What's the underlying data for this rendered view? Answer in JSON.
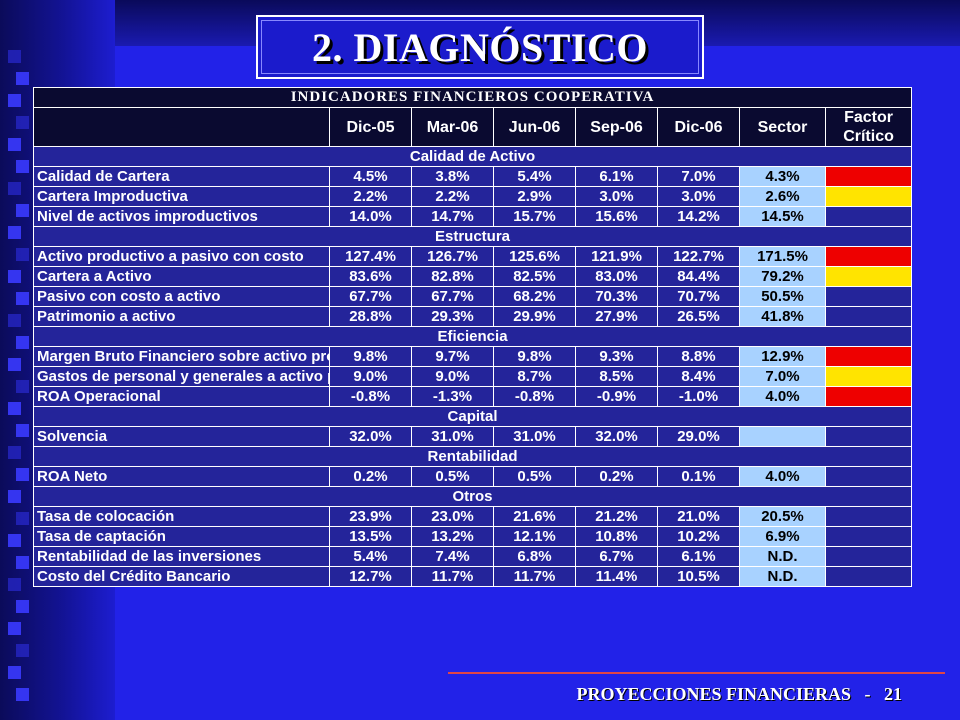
{
  "slide_title": "2. DIAGNÓSTICO",
  "table_title": "INDICADORES FINANCIEROS COOPERATIVA",
  "columns": [
    "Dic-05",
    "Mar-06",
    "Jun-06",
    "Sep-06",
    "Dic-06",
    "Sector"
  ],
  "factor_header": [
    "Factor",
    "Crítico"
  ],
  "sections": [
    {
      "name": "Calidad de Activo",
      "rows": [
        {
          "label": "Calidad de Cartera",
          "values": [
            "4.5%",
            "3.8%",
            "5.4%",
            "6.1%",
            "7.0%",
            "4.3%"
          ],
          "factor": "red"
        },
        {
          "label": "Cartera Improductiva",
          "values": [
            "2.2%",
            "2.2%",
            "2.9%",
            "3.0%",
            "3.0%",
            "2.6%"
          ],
          "factor": "yellow"
        },
        {
          "label": "Nivel de activos improductivos",
          "values": [
            "14.0%",
            "14.7%",
            "15.7%",
            "15.6%",
            "14.2%",
            "14.5%"
          ],
          "factor": "none"
        }
      ]
    },
    {
      "name": "Estructura",
      "rows": [
        {
          "label": "Activo productivo a pasivo con costo",
          "values": [
            "127.4%",
            "126.7%",
            "125.6%",
            "121.9%",
            "122.7%",
            "171.5%"
          ],
          "factor": "red"
        },
        {
          "label": "Cartera a Activo",
          "values": [
            "83.6%",
            "82.8%",
            "82.5%",
            "83.0%",
            "84.4%",
            "79.2%"
          ],
          "factor": "yellow"
        },
        {
          "label": "Pasivo con costo a activo",
          "values": [
            "67.7%",
            "67.7%",
            "68.2%",
            "70.3%",
            "70.7%",
            "50.5%"
          ],
          "factor": "none"
        },
        {
          "label": "Patrimonio a activo",
          "values": [
            "28.8%",
            "29.3%",
            "29.9%",
            "27.9%",
            "26.5%",
            "41.8%"
          ],
          "factor": "none"
        }
      ]
    },
    {
      "name": "Eficiencia",
      "rows": [
        {
          "label": "Margen Bruto Financiero sobre activo promedio",
          "values": [
            "9.8%",
            "9.7%",
            "9.8%",
            "9.3%",
            "8.8%",
            "12.9%"
          ],
          "factor": "red",
          "tall": true
        },
        {
          "label": "Gastos de personal y generales a activo promedio",
          "values": [
            "9.0%",
            "9.0%",
            "8.7%",
            "8.5%",
            "8.4%",
            "7.0%"
          ],
          "factor": "yellow",
          "tall": true
        },
        {
          "label": "ROA Operacional",
          "values": [
            "-0.8%",
            "-1.3%",
            "-0.8%",
            "-0.9%",
            "-1.0%",
            "4.0%"
          ],
          "factor": "red"
        }
      ]
    },
    {
      "name": "Capital",
      "rows": [
        {
          "label": "Solvencia",
          "values": [
            "32.0%",
            "31.0%",
            "31.0%",
            "32.0%",
            "29.0%",
            ""
          ],
          "factor": "none"
        }
      ]
    },
    {
      "name": "Rentabilidad",
      "rows": [
        {
          "label": "ROA Neto",
          "values": [
            "0.2%",
            "0.5%",
            "0.5%",
            "0.2%",
            "0.1%",
            "4.0%"
          ],
          "factor": "none"
        }
      ]
    },
    {
      "name": "Otros",
      "rows": [
        {
          "label": "Tasa de colocación",
          "values": [
            "23.9%",
            "23.0%",
            "21.6%",
            "21.2%",
            "21.0%",
            "20.5%"
          ],
          "factor": "none"
        },
        {
          "label": "Tasa de captación",
          "values": [
            "13.5%",
            "13.2%",
            "12.1%",
            "10.8%",
            "10.2%",
            "6.9%"
          ],
          "factor": "none"
        },
        {
          "label": "Rentabilidad de las inversiones",
          "values": [
            "5.4%",
            "7.4%",
            "6.8%",
            "6.7%",
            "6.1%",
            "N.D."
          ],
          "factor": "none"
        },
        {
          "label": "Costo del Crédito Bancario",
          "values": [
            "12.7%",
            "11.7%",
            "11.7%",
            "11.4%",
            "10.5%",
            "N.D."
          ],
          "factor": "none"
        }
      ]
    }
  ],
  "footer": {
    "text": "PROYECCIONES FINANCIERAS",
    "separator": "-",
    "page": "21"
  },
  "colors": {
    "background": "#2222e8",
    "sector": "#a8d2ff",
    "red": "#ee0000",
    "yellow": "#ffe400"
  }
}
